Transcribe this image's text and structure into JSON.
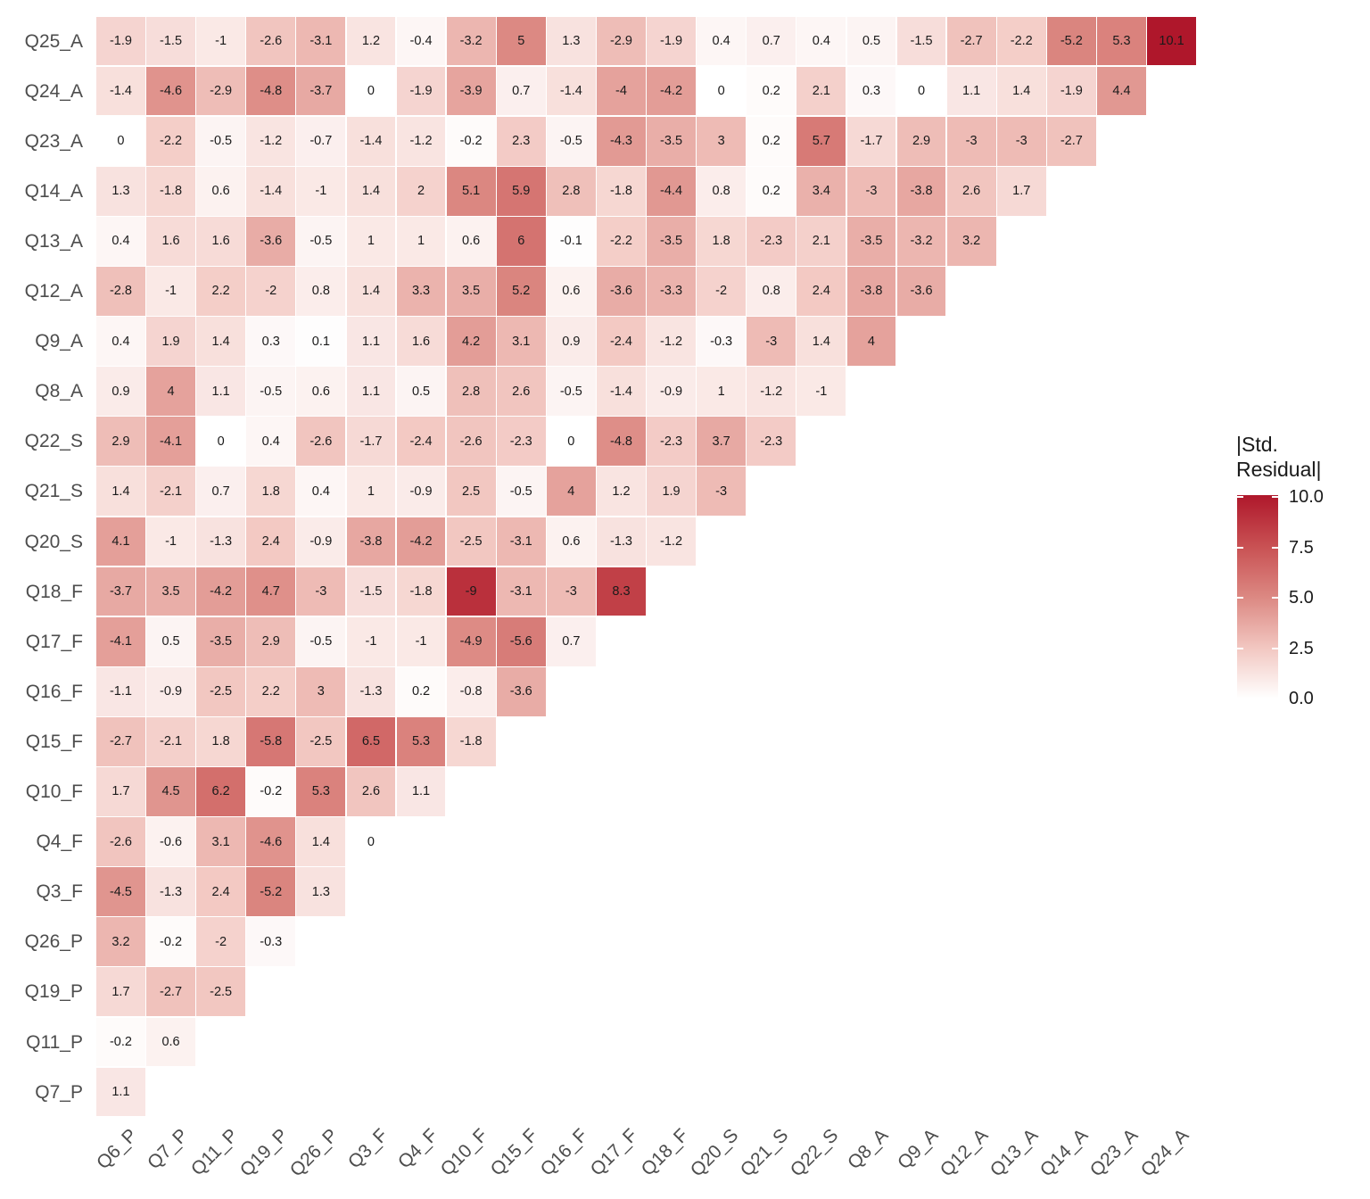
{
  "chart_data": {
    "type": "heatmap",
    "title": "",
    "description": "Lower-triangular heatmap of standardized residuals between questionnaire items",
    "x_categories": [
      "Q6_P",
      "Q7_P",
      "Q11_P",
      "Q19_P",
      "Q26_P",
      "Q3_F",
      "Q4_F",
      "Q10_F",
      "Q15_F",
      "Q16_F",
      "Q17_F",
      "Q18_F",
      "Q20_S",
      "Q21_S",
      "Q22_S",
      "Q8_A",
      "Q9_A",
      "Q12_A",
      "Q13_A",
      "Q14_A",
      "Q23_A",
      "Q24_A"
    ],
    "y_categories_top_to_bottom": [
      "Q25_A",
      "Q24_A",
      "Q23_A",
      "Q14_A",
      "Q13_A",
      "Q12_A",
      "Q9_A",
      "Q8_A",
      "Q22_S",
      "Q21_S",
      "Q20_S",
      "Q18_F",
      "Q17_F",
      "Q16_F",
      "Q15_F",
      "Q10_F",
      "Q4_F",
      "Q3_F",
      "Q26_P",
      "Q19_P",
      "Q11_P",
      "Q7_P"
    ],
    "rows": [
      {
        "label": "Q25_A",
        "values": [
          -1.9,
          -1.5,
          -1,
          -2.6,
          -3.1,
          1.2,
          -0.4,
          -3.2,
          5,
          1.3,
          -2.9,
          -1.9,
          0.4,
          0.7,
          0.4,
          0.5,
          -1.5,
          -2.7,
          -2.2,
          -5.2,
          5.3,
          10.1
        ]
      },
      {
        "label": "Q24_A",
        "values": [
          -1.4,
          -4.6,
          -2.9,
          -4.8,
          -3.7,
          0,
          -1.9,
          -3.9,
          0.7,
          -1.4,
          -4,
          -4.2,
          0,
          0.2,
          2.1,
          0.3,
          0,
          1.1,
          1.4,
          -1.9,
          4.4
        ]
      },
      {
        "label": "Q23_A",
        "values": [
          0,
          -2.2,
          -0.5,
          -1.2,
          -0.7,
          -1.4,
          -1.2,
          -0.2,
          2.3,
          -0.5,
          -4.3,
          -3.5,
          3,
          0.2,
          5.7,
          -1.7,
          2.9,
          -3,
          -3,
          -2.7
        ]
      },
      {
        "label": "Q14_A",
        "values": [
          1.3,
          -1.8,
          0.6,
          -1.4,
          -1,
          1.4,
          2,
          5.1,
          5.9,
          2.8,
          -1.8,
          -4.4,
          0.8,
          0.2,
          3.4,
          -3,
          -3.8,
          2.6,
          1.7
        ]
      },
      {
        "label": "Q13_A",
        "values": [
          0.4,
          1.6,
          1.6,
          -3.6,
          -0.5,
          1,
          1,
          0.6,
          6,
          -0.1,
          -2.2,
          -3.5,
          1.8,
          -2.3,
          2.1,
          -3.5,
          -3.2,
          3.2
        ]
      },
      {
        "label": "Q12_A",
        "values": [
          -2.8,
          -1,
          2.2,
          -2,
          0.8,
          1.4,
          3.3,
          3.5,
          5.2,
          0.6,
          -3.6,
          -3.3,
          -2,
          0.8,
          2.4,
          -3.8,
          -3.6
        ]
      },
      {
        "label": "Q9_A",
        "values": [
          0.4,
          1.9,
          1.4,
          0.3,
          0.1,
          1.1,
          1.6,
          4.2,
          3.1,
          0.9,
          -2.4,
          -1.2,
          -0.3,
          -3,
          1.4,
          4
        ]
      },
      {
        "label": "Q8_A",
        "values": [
          0.9,
          4,
          1.1,
          -0.5,
          0.6,
          1.1,
          0.5,
          2.8,
          2.6,
          -0.5,
          -1.4,
          -0.9,
          1,
          -1.2,
          -1
        ]
      },
      {
        "label": "Q22_S",
        "values": [
          2.9,
          -4.1,
          0,
          0.4,
          -2.6,
          -1.7,
          -2.4,
          -2.6,
          -2.3,
          0,
          -4.8,
          -2.3,
          3.7,
          -2.3
        ]
      },
      {
        "label": "Q21_S",
        "values": [
          1.4,
          -2.1,
          0.7,
          1.8,
          0.4,
          1,
          -0.9,
          2.5,
          -0.5,
          4,
          1.2,
          1.9,
          -3
        ]
      },
      {
        "label": "Q20_S",
        "values": [
          4.1,
          -1,
          -1.3,
          2.4,
          -0.9,
          -3.8,
          -4.2,
          -2.5,
          -3.1,
          0.6,
          -1.3,
          -1.2
        ]
      },
      {
        "label": "Q18_F",
        "values": [
          -3.7,
          3.5,
          -4.2,
          4.7,
          -3,
          -1.5,
          -1.8,
          -9,
          -3.1,
          -3,
          8.3
        ]
      },
      {
        "label": "Q17_F",
        "values": [
          -4.1,
          0.5,
          -3.5,
          2.9,
          -0.5,
          -1,
          -1,
          -4.9,
          -5.6,
          0.7
        ]
      },
      {
        "label": "Q16_F",
        "values": [
          -1.1,
          -0.9,
          -2.5,
          2.2,
          3,
          -1.3,
          0.2,
          -0.8,
          -3.6
        ]
      },
      {
        "label": "Q15_F",
        "values": [
          -2.7,
          -2.1,
          1.8,
          -5.8,
          -2.5,
          6.5,
          5.3,
          -1.8
        ]
      },
      {
        "label": "Q10_F",
        "values": [
          1.7,
          4.5,
          6.2,
          -0.2,
          5.3,
          2.6,
          1.1
        ]
      },
      {
        "label": "Q4_F",
        "values": [
          -2.6,
          -0.6,
          3.1,
          -4.6,
          1.4,
          0
        ]
      },
      {
        "label": "Q3_F",
        "values": [
          -4.5,
          -1.3,
          2.4,
          -5.2,
          1.3
        ]
      },
      {
        "label": "Q26_P",
        "values": [
          3.2,
          -0.2,
          -2,
          -0.3
        ]
      },
      {
        "label": "Q19_P",
        "values": [
          1.7,
          -2.7,
          -2.5
        ]
      },
      {
        "label": "Q11_P",
        "values": [
          -0.2,
          0.6
        ]
      },
      {
        "label": "Q7_P",
        "values": [
          1.1
        ]
      }
    ],
    "colorbar": {
      "title_line1": "|Std.",
      "title_line2": "Residual|",
      "tick_labels": [
        "10.0",
        "7.5",
        "5.0",
        "2.5",
        "0.0"
      ],
      "tick_values": [
        10,
        7.5,
        5,
        2.5,
        0
      ],
      "range": [
        0,
        10.1
      ],
      "gradient_stops": [
        [
          0,
          "#FFFFFF"
        ],
        [
          2.5,
          "#F2C7C1"
        ],
        [
          5,
          "#DC8983"
        ],
        [
          7.5,
          "#C95254"
        ],
        [
          10.1,
          "#AF172B"
        ]
      ],
      "legend_position": "right"
    },
    "grid": false,
    "x_tick_angle": 45
  },
  "colors": {
    "background": "#FFFFFF",
    "axis_text": "#4D4D4D",
    "cell_text": "#1A1A1A",
    "legend_text": "#1A1A1A",
    "cell_gap": "#FFFFFF"
  }
}
